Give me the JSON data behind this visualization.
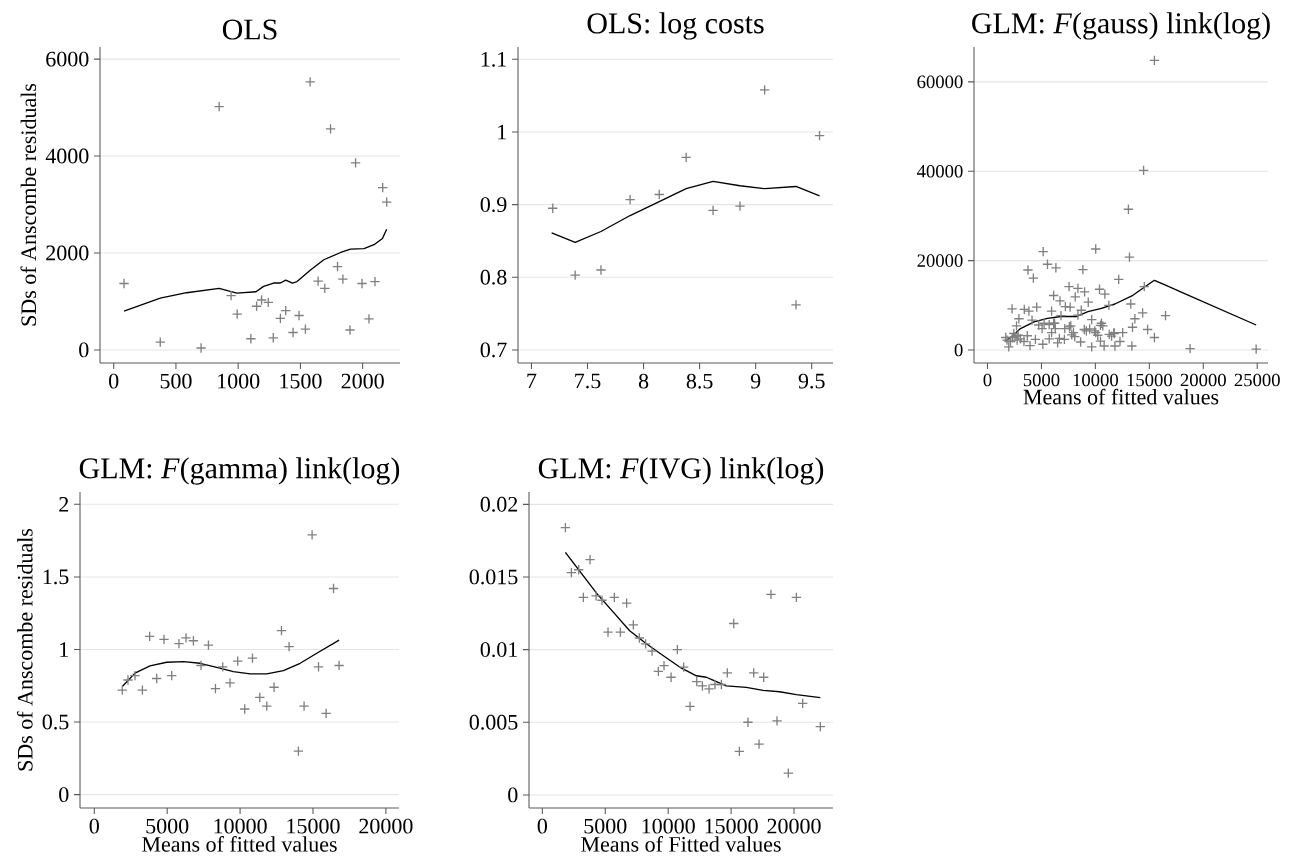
{
  "chart_data": [
    {
      "type": "scatter",
      "title": "OLS",
      "ylabel": "SDs of Anscombe residuals",
      "xlim": [
        -110,
        2300
      ],
      "ylim": [
        -270,
        6250
      ],
      "xticks": [
        0,
        500,
        1000,
        1500,
        2000
      ],
      "yticks": [
        0,
        2000,
        4000,
        6000
      ],
      "grid": "y",
      "marker": "cross",
      "series": [
        {
          "color": "#808080",
          "x": [
            83,
            374,
            702,
            847,
            943,
            992,
            1102,
            1148,
            1188,
            1242,
            1282,
            1339,
            1382,
            1441,
            1489,
            1540,
            1578,
            1642,
            1696,
            1742,
            1798,
            1841,
            1898,
            1943,
            1995,
            2051,
            2099,
            2161,
            2193
          ],
          "values": [
            1370,
            160,
            40,
            5020,
            1120,
            740,
            230,
            900,
            1030,
            980,
            250,
            650,
            810,
            360,
            710,
            430,
            5530,
            1420,
            1270,
            4560,
            1720,
            1460,
            410,
            3860,
            1370,
            640,
            1410,
            3350,
            3050
          ]
        },
        {
          "type": "line",
          "color": "#000000",
          "marker": "none",
          "x": [
            83,
            374,
            586,
            847,
            989,
            1143,
            1204,
            1285,
            1339,
            1382,
            1436,
            1473,
            1581,
            1688,
            1823,
            1903,
            2011,
            2091,
            2159,
            2193
          ],
          "values": [
            800,
            1070,
            1180,
            1270,
            1170,
            1200,
            1310,
            1380,
            1380,
            1440,
            1380,
            1410,
            1650,
            1860,
            2010,
            2080,
            2090,
            2170,
            2300,
            2490
          ]
        }
      ]
    },
    {
      "type": "scatter",
      "title": "OLS: log costs",
      "xlim": [
        6.88,
        9.69
      ],
      "ylim": [
        0.682,
        1.117
      ],
      "xticks": [
        7,
        7.5,
        8,
        8.5,
        9,
        9.5
      ],
      "yticks": [
        0.7,
        0.8,
        0.9,
        1,
        1.1
      ],
      "grid": "y",
      "marker": "cross",
      "series": [
        {
          "color": "#808080",
          "x": [
            7.19,
            7.39,
            7.62,
            7.88,
            8.14,
            8.38,
            8.62,
            8.86,
            9.08,
            9.36,
            9.57
          ],
          "values": [
            0.895,
            0.803,
            0.81,
            0.907,
            0.914,
            0.965,
            0.892,
            0.898,
            1.058,
            0.762,
            0.995
          ]
        },
        {
          "type": "line",
          "color": "#000000",
          "marker": "none",
          "x": [
            7.18,
            7.39,
            7.62,
            7.88,
            8.14,
            8.38,
            8.62,
            8.86,
            9.08,
            9.36,
            9.57
          ],
          "values": [
            0.861,
            0.848,
            0.863,
            0.885,
            0.904,
            0.922,
            0.932,
            0.926,
            0.922,
            0.925,
            0.912
          ]
        }
      ]
    },
    {
      "type": "scatter",
      "title": "GLM: *F*(gauss) link(log)",
      "xlabel": "Means of fitted values",
      "xlim": [
        -1250,
        26000
      ],
      "ylim": [
        -2900,
        67800
      ],
      "xticks": [
        0,
        5000,
        10000,
        15000,
        20000,
        25000
      ],
      "yticks": [
        0,
        20000,
        40000,
        60000
      ],
      "grid": "y",
      "marker": "cross",
      "series": [
        {
          "color": "#808080",
          "x": [
            15470,
            14470,
            13060,
            13160,
            10030,
            5160,
            5560,
            6340,
            8840,
            3750,
            4250,
            12160,
            14530,
            7560,
            8380,
            9000,
            10380,
            10880,
            6130,
            6720,
            8130,
            9340,
            11250,
            13280,
            7220,
            7660,
            8690,
            4560,
            2280,
            3410,
            3840,
            5940,
            6810,
            8380,
            14380,
            16500,
            13660,
            2910,
            4130,
            9660,
            7720,
            10470,
            4750,
            5250,
            5720,
            6220,
            2690,
            5060,
            6280,
            7160,
            8970,
            9470,
            10030,
            10690,
            11280,
            11720,
            12530,
            13440,
            14840,
            7810,
            3690,
            5720,
            6660,
            7130,
            8090,
            10220,
            11500,
            15470,
            4440,
            2310,
            1810,
            1690,
            2750,
            3060,
            6500,
            8630,
            10470,
            10810,
            12280,
            5130,
            3940,
            9660,
            11810,
            13380,
            1970,
            18780,
            2130,
            2440,
            2560,
            2840,
            3380,
            5940,
            6130,
            7590,
            7970,
            9160,
            9940,
            10560,
            11750,
            24900
          ],
          "values": [
            64800,
            40200,
            31500,
            20800,
            22600,
            22000,
            19200,
            18400,
            18000,
            17900,
            16100,
            15800,
            14200,
            14200,
            13800,
            13000,
            13600,
            12500,
            12200,
            11000,
            11900,
            10700,
            10000,
            10300,
            9700,
            9600,
            8900,
            9600,
            9200,
            9100,
            8700,
            8700,
            7700,
            7800,
            8300,
            7700,
            7000,
            7000,
            6700,
            6800,
            5400,
            5500,
            5600,
            6000,
            5700,
            6000,
            5400,
            4800,
            4800,
            4800,
            4600,
            4700,
            3900,
            5400,
            3500,
            3900,
            3900,
            5100,
            4600,
            3400,
            3200,
            2500,
            2600,
            2400,
            3000,
            3300,
            3100,
            2800,
            2400,
            2800,
            2200,
            2800,
            2200,
            2500,
            1600,
            1800,
            2000,
            900,
            1900,
            1300,
            1000,
            700,
            900,
            900,
            700,
            300,
            1900,
            3700,
            3000,
            3300,
            1900,
            3900,
            6000,
            5200,
            3900,
            4300,
            4300,
            6000,
            3700,
            200
          ]
        },
        {
          "type": "line",
          "color": "#000000",
          "marker": "none",
          "x": [
            1590,
            2130,
            3060,
            4310,
            5560,
            6810,
            8220,
            9310,
            10560,
            11810,
            13380,
            14630,
            15470,
            16500,
            18380,
            24900
          ],
          "values": [
            1900,
            2800,
            4800,
            6300,
            7100,
            7500,
            7500,
            8600,
            9300,
            10300,
            12100,
            14200,
            15600,
            14500,
            12500,
            5600
          ]
        }
      ]
    },
    {
      "type": "scatter",
      "title": "GLM: *F*(gamma) link(log)",
      "xlabel": "Means of fitted values",
      "ylabel": "SDs of Anscombe residuals",
      "xlim": [
        -980,
        20900
      ],
      "ylim": [
        -0.092,
        2.085
      ],
      "xticks": [
        0,
        5000,
        10000,
        15000,
        20000
      ],
      "yticks": [
        0,
        0.5,
        1,
        1.5,
        2
      ],
      "grid": "y",
      "marker": "cross",
      "series": [
        {
          "color": "#808080",
          "x": [
            1920,
            2310,
            2790,
            3300,
            3800,
            4280,
            4780,
            5310,
            5810,
            6290,
            6800,
            7320,
            7830,
            8310,
            8810,
            9310,
            9840,
            10320,
            10850,
            11350,
            11830,
            12330,
            12840,
            13360,
            14000,
            14390,
            14940,
            15380,
            15900,
            16410,
            16790
          ],
          "values": [
            0.72,
            0.79,
            0.82,
            0.72,
            1.09,
            0.8,
            1.07,
            0.82,
            1.04,
            1.08,
            1.06,
            0.89,
            1.03,
            0.73,
            0.88,
            0.77,
            0.92,
            0.59,
            0.94,
            0.67,
            0.61,
            0.74,
            1.13,
            1.02,
            0.3,
            0.61,
            1.79,
            0.88,
            0.56,
            1.42,
            0.89
          ]
        },
        {
          "type": "line",
          "color": "#000000",
          "marker": "none",
          "x": [
            1920,
            2790,
            3820,
            4970,
            6110,
            7250,
            8400,
            9540,
            10690,
            11830,
            12970,
            14120,
            15260,
            16790
          ],
          "values": [
            0.745,
            0.837,
            0.887,
            0.912,
            0.916,
            0.905,
            0.877,
            0.848,
            0.832,
            0.832,
            0.855,
            0.905,
            0.974,
            1.065
          ]
        }
      ]
    },
    {
      "type": "scatter",
      "title": "GLM: *F*(IVG) link(log)",
      "xlabel": "Means of Fitted values",
      "xlim": [
        -1060,
        23100
      ],
      "ylim": [
        -0.0009,
        0.02085
      ],
      "xticks": [
        0,
        5000,
        10000,
        15000,
        20000
      ],
      "yticks": [
        0,
        0.005,
        0.01,
        0.015,
        0.02
      ],
      "grid": "y",
      "marker": "cross",
      "series": [
        {
          "color": "#808080",
          "x": [
            1830,
            2310,
            2890,
            3260,
            3790,
            4270,
            4740,
            5220,
            5720,
            6200,
            6700,
            7230,
            7710,
            8210,
            8720,
            9220,
            9670,
            10230,
            10730,
            11230,
            11740,
            12270,
            12720,
            13250,
            13720,
            14230,
            14700,
            15210,
            15660,
            16340,
            16800,
            17220,
            17590,
            18170,
            18650,
            19550,
            20190,
            20690,
            22090
          ],
          "values": [
            0.0184,
            0.0153,
            0.0155,
            0.0136,
            0.0162,
            0.0137,
            0.0134,
            0.0112,
            0.0136,
            0.0112,
            0.0132,
            0.0117,
            0.0108,
            0.0104,
            0.0099,
            0.0085,
            0.0089,
            0.0081,
            0.01,
            0.0088,
            0.0061,
            0.0078,
            0.0075,
            0.0073,
            0.0076,
            0.0076,
            0.0084,
            0.0118,
            0.003,
            0.005,
            0.0084,
            0.0035,
            0.0081,
            0.0138,
            0.0051,
            0.0015,
            0.0136,
            0.0063,
            0.0047
          ]
        },
        {
          "type": "line",
          "color": "#000000",
          "marker": "none",
          "x": [
            1830,
            2970,
            4290,
            5620,
            6940,
            8270,
            9590,
            10910,
            12240,
            13030,
            13560,
            14620,
            16210,
            17540,
            18860,
            20190,
            22090
          ],
          "values": [
            0.0167,
            0.0154,
            0.0139,
            0.0126,
            0.0113,
            0.0104,
            0.0096,
            0.0088,
            0.0082,
            0.0081,
            0.0079,
            0.0075,
            0.0074,
            0.0072,
            0.0071,
            0.0069,
            0.0067
          ]
        }
      ]
    }
  ]
}
